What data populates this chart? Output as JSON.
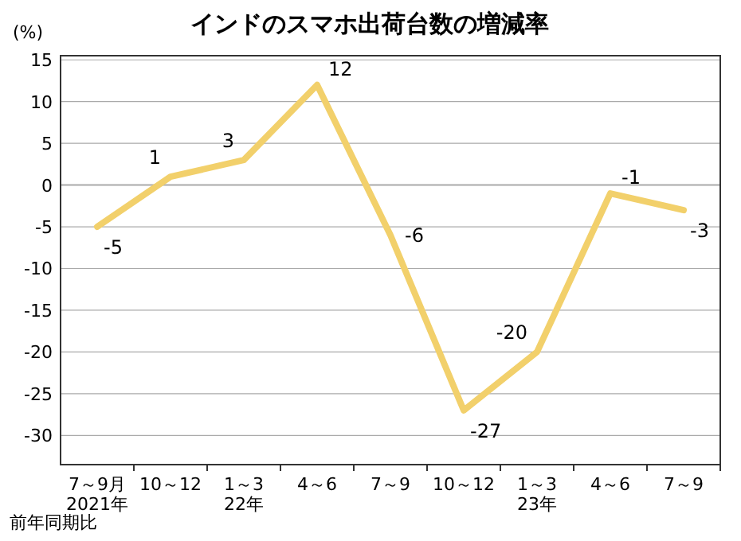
{
  "chart_data": {
    "type": "line",
    "title": "インドのスマホ出荷台数の増減率",
    "ylabel": "(%)",
    "categories": [
      "7～9月\n2021年",
      "10～12",
      "1～3\n22年",
      "4～6",
      "7～9",
      "10～12",
      "1～3\n23年",
      "4～6",
      "7～9"
    ],
    "series": [
      {
        "color": "#f2d06b",
        "values": [
          -5,
          1,
          3,
          12,
          -6,
          -27,
          -20,
          -1,
          -3
        ]
      }
    ],
    "ylim": [
      -33.5,
      15.5
    ],
    "yticks": [
      -30,
      -25,
      -20,
      -15,
      -10,
      -5,
      0,
      5,
      10,
      15
    ],
    "grid": "y",
    "data_labels": true,
    "annotations": [
      "前年同期比"
    ]
  }
}
